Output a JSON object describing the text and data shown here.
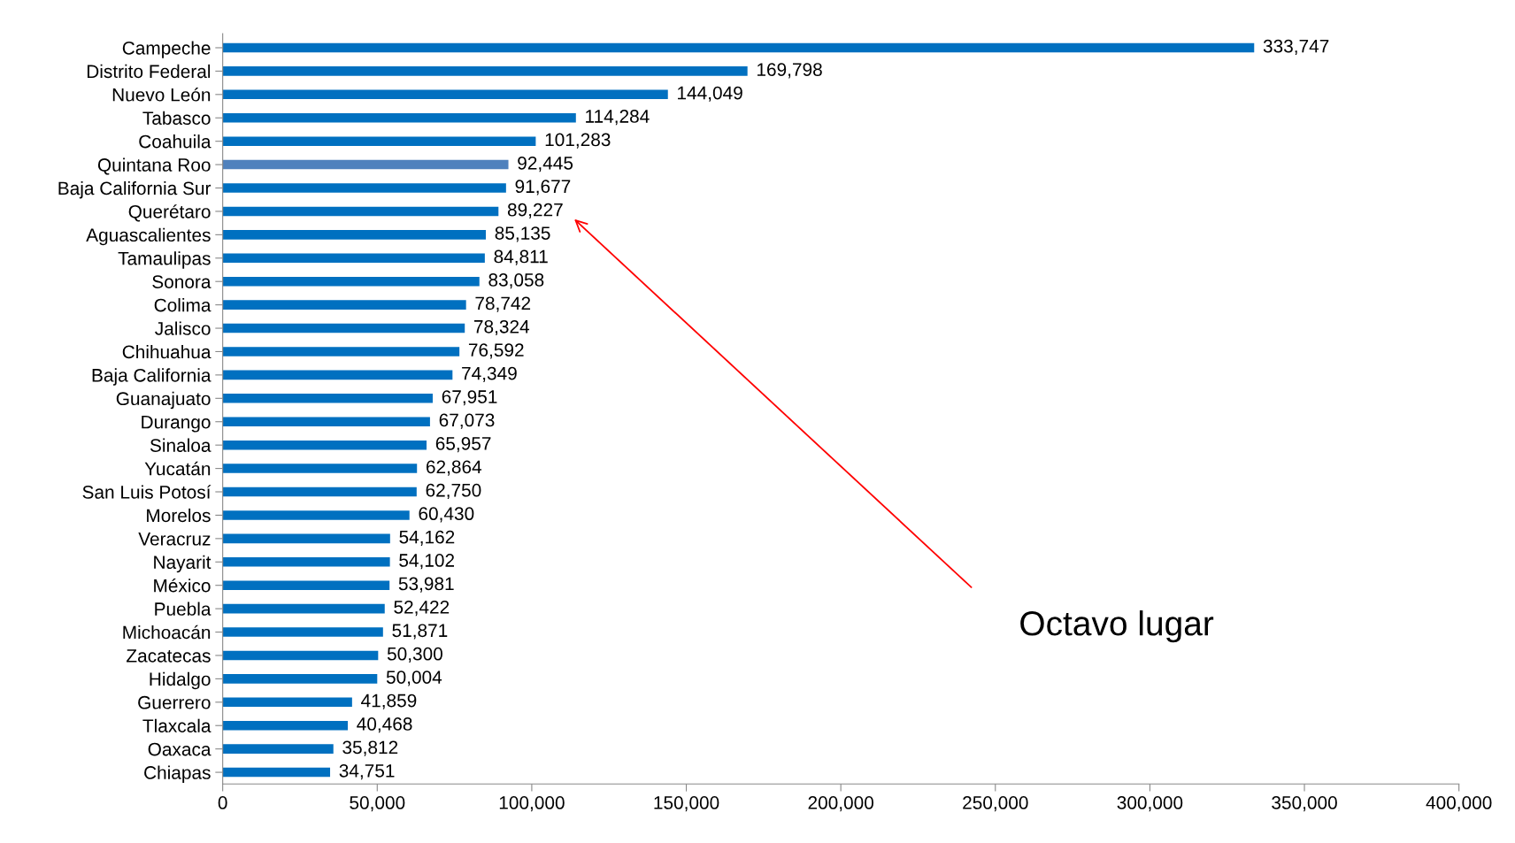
{
  "chart_data": {
    "type": "bar",
    "orientation": "horizontal",
    "categories": [
      "Campeche",
      "Distrito Federal",
      "Nuevo León",
      "Tabasco",
      "Coahuila",
      "Quintana Roo",
      "Baja California Sur",
      "Querétaro",
      "Aguascalientes",
      "Tamaulipas",
      "Sonora",
      "Colima",
      "Jalisco",
      "Chihuahua",
      "Baja California",
      "Guanajuato",
      "Durango",
      "Sinaloa",
      "Yucatán",
      "San Luis Potosí",
      "Morelos",
      "Veracruz",
      "Nayarit",
      "México",
      "Puebla",
      "Michoacán",
      "Zacatecas",
      "Hidalgo",
      "Guerrero",
      "Tlaxcala",
      "Oaxaca",
      "Chiapas"
    ],
    "values": [
      333747,
      169798,
      144049,
      114284,
      101283,
      92445,
      91677,
      89227,
      85135,
      84811,
      83058,
      78742,
      78324,
      76592,
      74349,
      67951,
      67073,
      65957,
      62864,
      62750,
      60430,
      54162,
      54102,
      53981,
      52422,
      51871,
      50300,
      50004,
      41859,
      40468,
      35812,
      34751
    ],
    "colors": [
      "#0070c0",
      "#0070c0",
      "#0070c0",
      "#0070c0",
      "#0070c0",
      "#4f81bd",
      "#0070c0",
      "#0070c0",
      "#0070c0",
      "#0070c0",
      "#0070c0",
      "#0070c0",
      "#0070c0",
      "#0070c0",
      "#0070c0",
      "#0070c0",
      "#0070c0",
      "#0070c0",
      "#0070c0",
      "#0070c0",
      "#0070c0",
      "#0070c0",
      "#0070c0",
      "#0070c0",
      "#0070c0",
      "#0070c0",
      "#0070c0",
      "#0070c0",
      "#0070c0",
      "#0070c0",
      "#0070c0",
      "#0070c0"
    ],
    "value_labels": [
      "333,747",
      "169,798",
      "144,049",
      "114,284",
      "101,283",
      "92,445",
      "91,677",
      "89,227",
      "85,135",
      "84,811",
      "83,058",
      "78,742",
      "78,324",
      "76,592",
      "74,349",
      "67,951",
      "67,073",
      "65,957",
      "62,864",
      "62,750",
      "60,430",
      "54,162",
      "54,102",
      "53,981",
      "52,422",
      "51,871",
      "50,300",
      "50,004",
      "41,859",
      "40,468",
      "35,812",
      "34,751"
    ],
    "xlim": [
      0,
      400000
    ],
    "xticks": [
      0,
      {
        "value": 50000,
        "label": "50,000"
      },
      {
        "value": 100000,
        "label": "100,000"
      },
      {
        "value": 150000,
        "label": "150,000"
      },
      {
        "value": 200000,
        "label": "200,000"
      },
      {
        "value": 250000,
        "label": "250,000"
      },
      {
        "value": 300000,
        "label": "300,000"
      },
      {
        "value": 350000,
        "label": "350,000"
      },
      {
        "value": 400000,
        "label": "400,000"
      }
    ],
    "annotations": [
      "Octavo lugar"
    ],
    "grid": false,
    "legend": false
  }
}
